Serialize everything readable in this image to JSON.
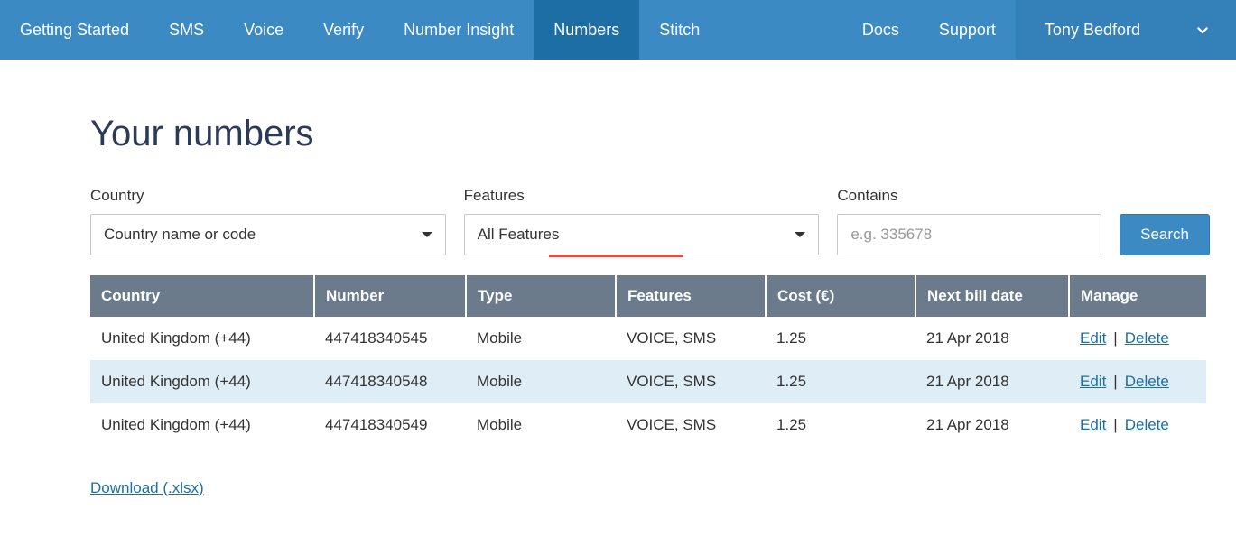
{
  "nav": {
    "items": [
      {
        "label": "Getting Started",
        "active": false
      },
      {
        "label": "SMS",
        "active": false
      },
      {
        "label": "Voice",
        "active": false
      },
      {
        "label": "Verify",
        "active": false
      },
      {
        "label": "Number Insight",
        "active": false
      },
      {
        "label": "Numbers",
        "active": true
      },
      {
        "label": "Stitch",
        "active": false
      }
    ],
    "right": [
      {
        "label": "Docs"
      },
      {
        "label": "Support"
      }
    ],
    "user_name": "Tony Bedford"
  },
  "page": {
    "title": "Your numbers",
    "download_label": "Download (.xlsx)"
  },
  "filters": {
    "country": {
      "label": "Country",
      "value": "Country name or code"
    },
    "features": {
      "label": "Features",
      "value": "All Features"
    },
    "contains": {
      "label": "Contains",
      "placeholder": "e.g. 335678"
    },
    "search_label": "Search"
  },
  "table": {
    "columns": [
      "Country",
      "Number",
      "Type",
      "Features",
      "Cost (€)",
      "Next bill date",
      "Manage"
    ],
    "rows": [
      {
        "country": "United Kingdom (+44)",
        "number": "447418340545",
        "type": "Mobile",
        "features": "VOICE, SMS",
        "cost": "1.25",
        "next": "21 Apr 2018"
      },
      {
        "country": "United Kingdom (+44)",
        "number": "447418340548",
        "type": "Mobile",
        "features": "VOICE, SMS",
        "cost": "1.25",
        "next": "21 Apr 2018"
      },
      {
        "country": "United Kingdom (+44)",
        "number": "447418340549",
        "type": "Mobile",
        "features": "VOICE, SMS",
        "cost": "1.25",
        "next": "21 Apr 2018"
      }
    ],
    "edit_label": "Edit",
    "delete_label": "Delete",
    "header_bg": "#6b7b8c",
    "alt_row_bg": "#dfeef6",
    "accent_underline_color": "#e84c3d"
  },
  "colors": {
    "nav_bg": "#3b8ac4",
    "nav_active_bg": "#1d6ea5",
    "link": "#1d6ea5",
    "title": "#2a3a57"
  }
}
